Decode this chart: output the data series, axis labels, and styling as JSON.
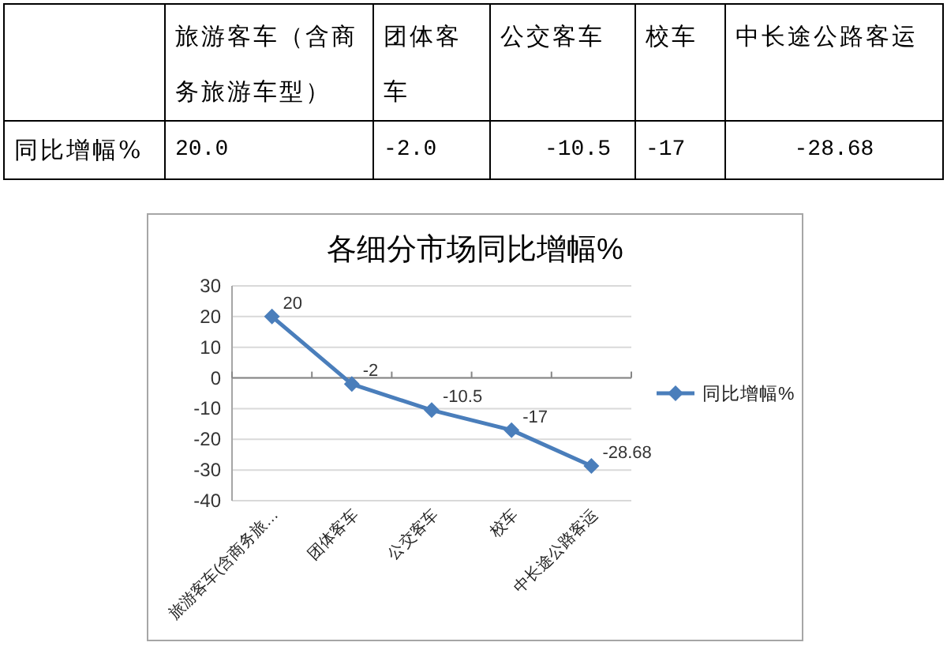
{
  "chart_data": [
    {
      "type": "other",
      "categories": [
        "旅游客车（含商务旅游车型）",
        "团体客车",
        "公交客车",
        "校车",
        "中长途公路客运"
      ],
      "series": [
        {
          "name": "同比增幅%",
          "values": [
            20,
            -2,
            -10.5,
            -17,
            -28.68
          ],
          "value_labels": [
            "20.0",
            "-2.0",
            "-10.5",
            "-17",
            "-28.68"
          ]
        }
      ]
    },
    {
      "type": "line",
      "title": "各细分市场同比增幅%",
      "categories": [
        "旅游客车(含商务旅…",
        "团体客车",
        "公交客车",
        "校车",
        "中长途公路客运"
      ],
      "series": [
        {
          "name": "同比增幅%",
          "color": "#4a7ebb",
          "values": [
            20,
            -2,
            -10.5,
            -17,
            -28.68
          ]
        }
      ],
      "ylim": [
        -40,
        30
      ],
      "yticks": [
        -40,
        -30,
        -20,
        -10,
        0,
        10,
        20,
        30
      ],
      "grid": "y",
      "legend": "right",
      "marker": "diamond",
      "line_style": "solid",
      "data_labels": true
    }
  ]
}
